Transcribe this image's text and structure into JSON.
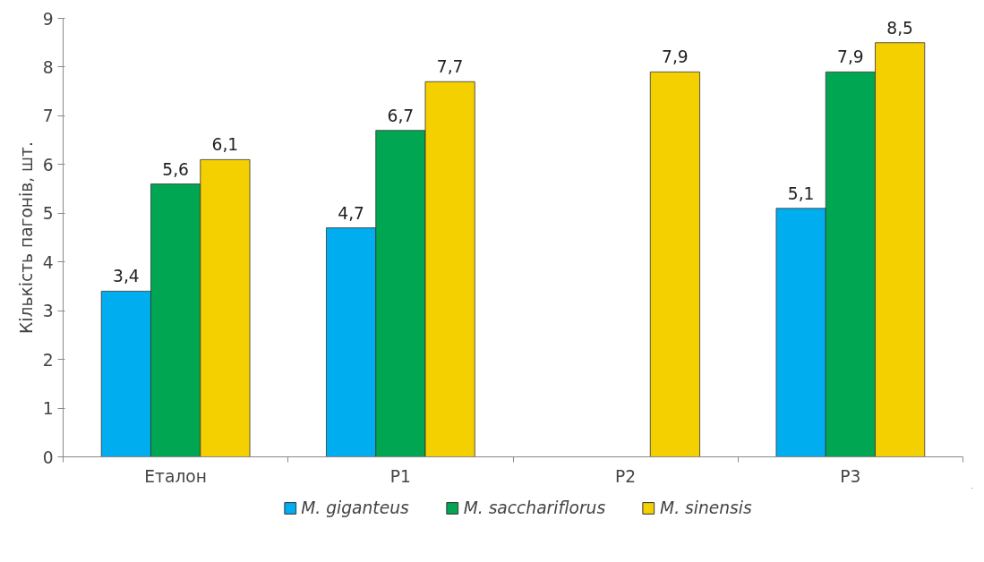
{
  "chart_data": {
    "type": "bar",
    "ylabel": "Кількість пагонів, шт.",
    "categories": [
      "Еталон",
      "Р1",
      "Р2",
      "Р3"
    ],
    "series": [
      {
        "name": "M. giganteus",
        "color": "#00aeef",
        "values": [
          3.4,
          4.7,
          null,
          5.1
        ],
        "value_labels": [
          "3,4",
          "4,7",
          null,
          "5,1"
        ]
      },
      {
        "name": "M. sacchariflorus",
        "color": "#00a651",
        "values": [
          5.6,
          6.7,
          null,
          7.9
        ],
        "value_labels": [
          "5,6",
          "6,7",
          null,
          "7,9"
        ]
      },
      {
        "name": "M. sinensis",
        "color": "#f5d000",
        "values": [
          6.1,
          7.7,
          7.9,
          8.5
        ],
        "value_labels": [
          "6,1",
          "7,7",
          "7,9",
          "8,5"
        ]
      }
    ],
    "ylim": [
      0,
      9
    ],
    "yticks": [
      0,
      1,
      2,
      3,
      4,
      5,
      6,
      7,
      8,
      9
    ],
    "grid": false,
    "legend": "bottom"
  }
}
